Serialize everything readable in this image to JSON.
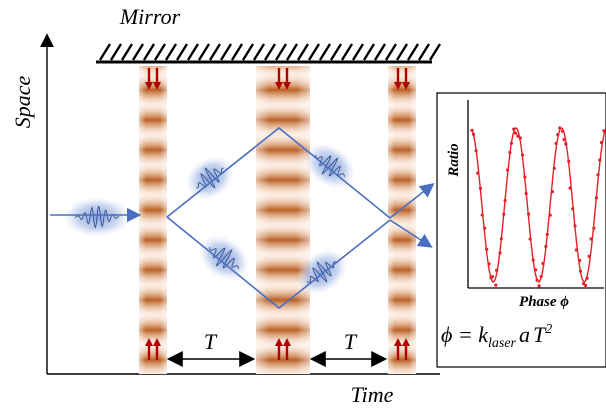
{
  "labels": {
    "mirror": "Mirror",
    "space_axis": "Space",
    "time_axis": "Time",
    "interval_1": "T",
    "interval_2": "T"
  },
  "inset": {
    "y_label": "Ratio",
    "x_label": "Phase ϕ",
    "formula": {
      "lhs": "ϕ = ",
      "k": "k",
      "k_sub": "laser",
      "a": "a",
      "T": "T",
      "T_sup": "2"
    }
  },
  "colors": {
    "beam": "#4a6fc0",
    "wavepacket_glow": "#8aa4d8",
    "laser_dark": "#b5581a",
    "laser_light": "#fbece2",
    "arrow_red": "#b00000",
    "fit_curve": "#e8202a",
    "axis": "#000000"
  },
  "icons": [
    "double-arrow-down-icon",
    "double-arrow-up-icon"
  ]
}
